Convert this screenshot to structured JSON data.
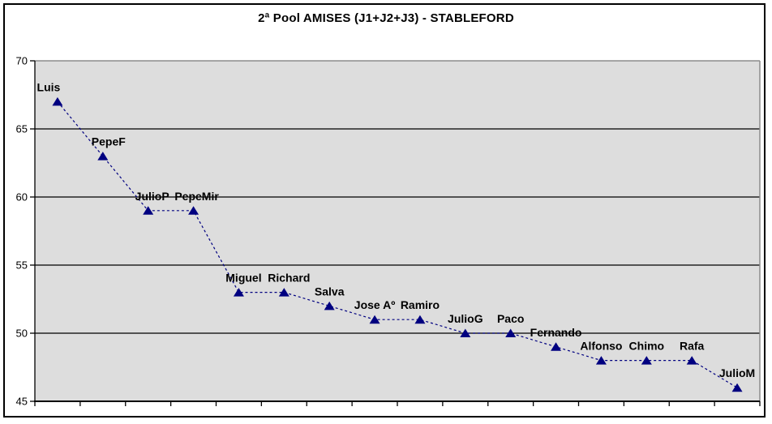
{
  "title": "2ª Pool AMISES (J1+J2+J3) - STABLEFORD",
  "colors": {
    "background": "#FFFFFF",
    "chart_border": "#000000",
    "plot_background": "#DDDDDD",
    "plot_border": "#8C8C8C",
    "gridline": "#000000",
    "axis": "#000000",
    "series": "#000080",
    "text": "#000000"
  },
  "chart_data": {
    "type": "line",
    "title": "2ª Pool AMISES (J1+J2+J3) - STABLEFORD",
    "categories": [
      "Luis",
      "PepeF",
      "JulioP",
      "PepeMir",
      "Miguel",
      "Richard",
      "Salva",
      "Jose Aº",
      "Ramiro",
      "JulioG",
      "Paco",
      "Fernando",
      "Alfonso",
      "Chimo",
      "Rafa",
      "JulioM"
    ],
    "values": [
      67,
      63,
      59,
      59,
      53,
      53,
      52,
      51,
      51,
      50,
      50,
      49,
      48,
      48,
      48,
      46
    ],
    "ylim": [
      45,
      70
    ],
    "yticks": [
      45,
      50,
      55,
      60,
      65,
      70
    ],
    "xlabel": "",
    "ylabel": "",
    "x_axis_tick_labels": "none",
    "grid": true,
    "legend": "none",
    "line_style": "dashed",
    "marker": "triangle",
    "data_labels": "above",
    "label_dx": {
      "0": -11,
      "1": 7,
      "2": 5,
      "3": 4,
      "4": 6,
      "5": 6
    }
  }
}
